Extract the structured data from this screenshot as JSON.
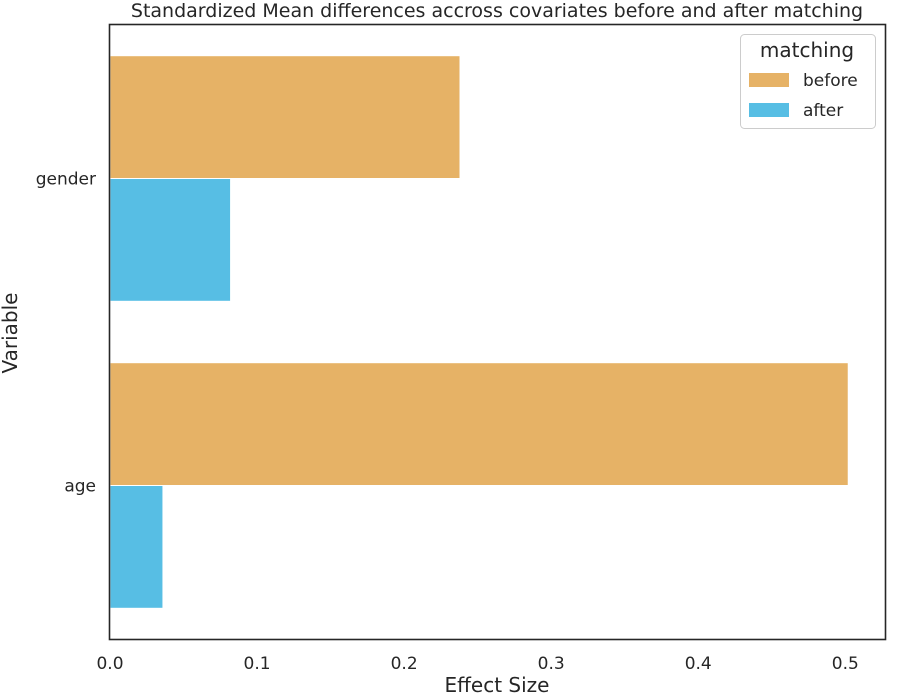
{
  "chart_data": {
    "type": "bar",
    "orientation": "horizontal",
    "title": "Standardized Mean differences accross covariates before and after matching",
    "xlabel": "Effect Size",
    "ylabel": "Variable",
    "categories": [
      "gender",
      "age"
    ],
    "series": [
      {
        "name": "before",
        "color": "#E6B266",
        "values": [
          0.238,
          0.502
        ]
      },
      {
        "name": "after",
        "color": "#57BEE4",
        "values": [
          0.082,
          0.036
        ]
      }
    ],
    "xlim": [
      0.0,
      0.527
    ],
    "xticks": [
      0.0,
      0.1,
      0.2,
      0.3,
      0.4,
      0.5
    ],
    "xtick_labels": [
      "0.0",
      "0.1",
      "0.2",
      "0.3",
      "0.4",
      "0.5"
    ],
    "legend": {
      "title": "matching",
      "position": "top-right"
    },
    "grid": false
  }
}
